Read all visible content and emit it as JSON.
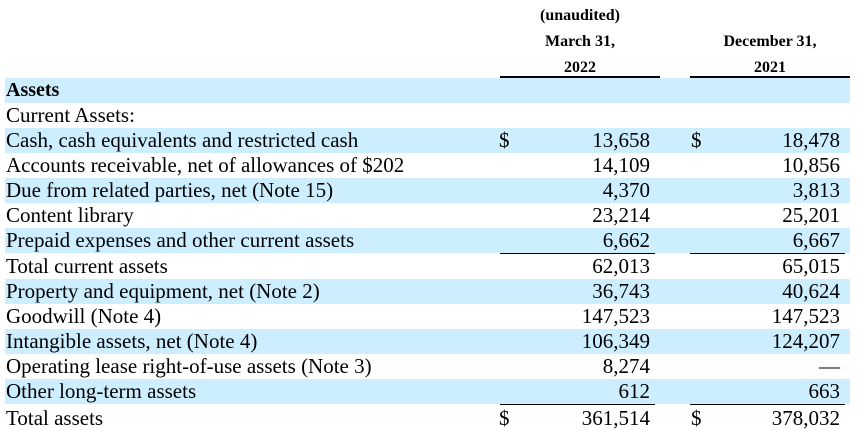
{
  "header": {
    "col1": [
      "(unaudited)",
      "March 31,",
      "2022"
    ],
    "col2": [
      "December 31,",
      "2021"
    ]
  },
  "rows": [
    {
      "label": "Assets",
      "bold": true,
      "shade": true,
      "cur1": "",
      "v1": "",
      "cur2": "",
      "v2": ""
    },
    {
      "label": "Current Assets:",
      "bold": false,
      "shade": false,
      "cur1": "",
      "v1": "",
      "cur2": "",
      "v2": ""
    },
    {
      "label": "Cash, cash equivalents and restricted cash",
      "bold": false,
      "shade": true,
      "cur1": "$",
      "v1": "13,658",
      "cur2": "$",
      "v2": "18,478"
    },
    {
      "label": "Accounts receivable, net of allowances of $202",
      "bold": false,
      "shade": false,
      "cur1": "",
      "v1": "14,109",
      "cur2": "",
      "v2": "10,856"
    },
    {
      "label": "Due from related parties, net (Note 15)",
      "bold": false,
      "shade": true,
      "cur1": "",
      "v1": "4,370",
      "cur2": "",
      "v2": "3,813"
    },
    {
      "label": "Content library",
      "bold": false,
      "shade": false,
      "cur1": "",
      "v1": "23,214",
      "cur2": "",
      "v2": "25,201"
    },
    {
      "label": "Prepaid expenses and other current assets",
      "bold": false,
      "shade": true,
      "cur1": "",
      "v1": "6,662",
      "cur2": "",
      "v2": "6,667"
    },
    {
      "label": "Total current assets",
      "bold": false,
      "shade": false,
      "cur1": "",
      "v1": "62,013",
      "cur2": "",
      "v2": "65,015"
    },
    {
      "label": "Property and equipment, net (Note 2)",
      "bold": false,
      "shade": true,
      "cur1": "",
      "v1": "36,743",
      "cur2": "",
      "v2": "40,624"
    },
    {
      "label": "Goodwill (Note 4)",
      "bold": false,
      "shade": false,
      "cur1": "",
      "v1": "147,523",
      "cur2": "",
      "v2": "147,523"
    },
    {
      "label": "Intangible assets, net (Note 4)",
      "bold": false,
      "shade": true,
      "cur1": "",
      "v1": "106,349",
      "cur2": "",
      "v2": "124,207"
    },
    {
      "label": "Operating lease right-of-use assets (Note 3)",
      "bold": false,
      "shade": false,
      "cur1": "",
      "v1": "8,274",
      "cur2": "",
      "v2": "—"
    },
    {
      "label": "Other long-term assets",
      "bold": false,
      "shade": true,
      "cur1": "",
      "v1": "612",
      "cur2": "",
      "v2": "663"
    },
    {
      "label": "Total assets",
      "bold": false,
      "shade": false,
      "cur1": "$",
      "v1": "361,514",
      "cur2": "$",
      "v2": "378,032"
    }
  ]
}
